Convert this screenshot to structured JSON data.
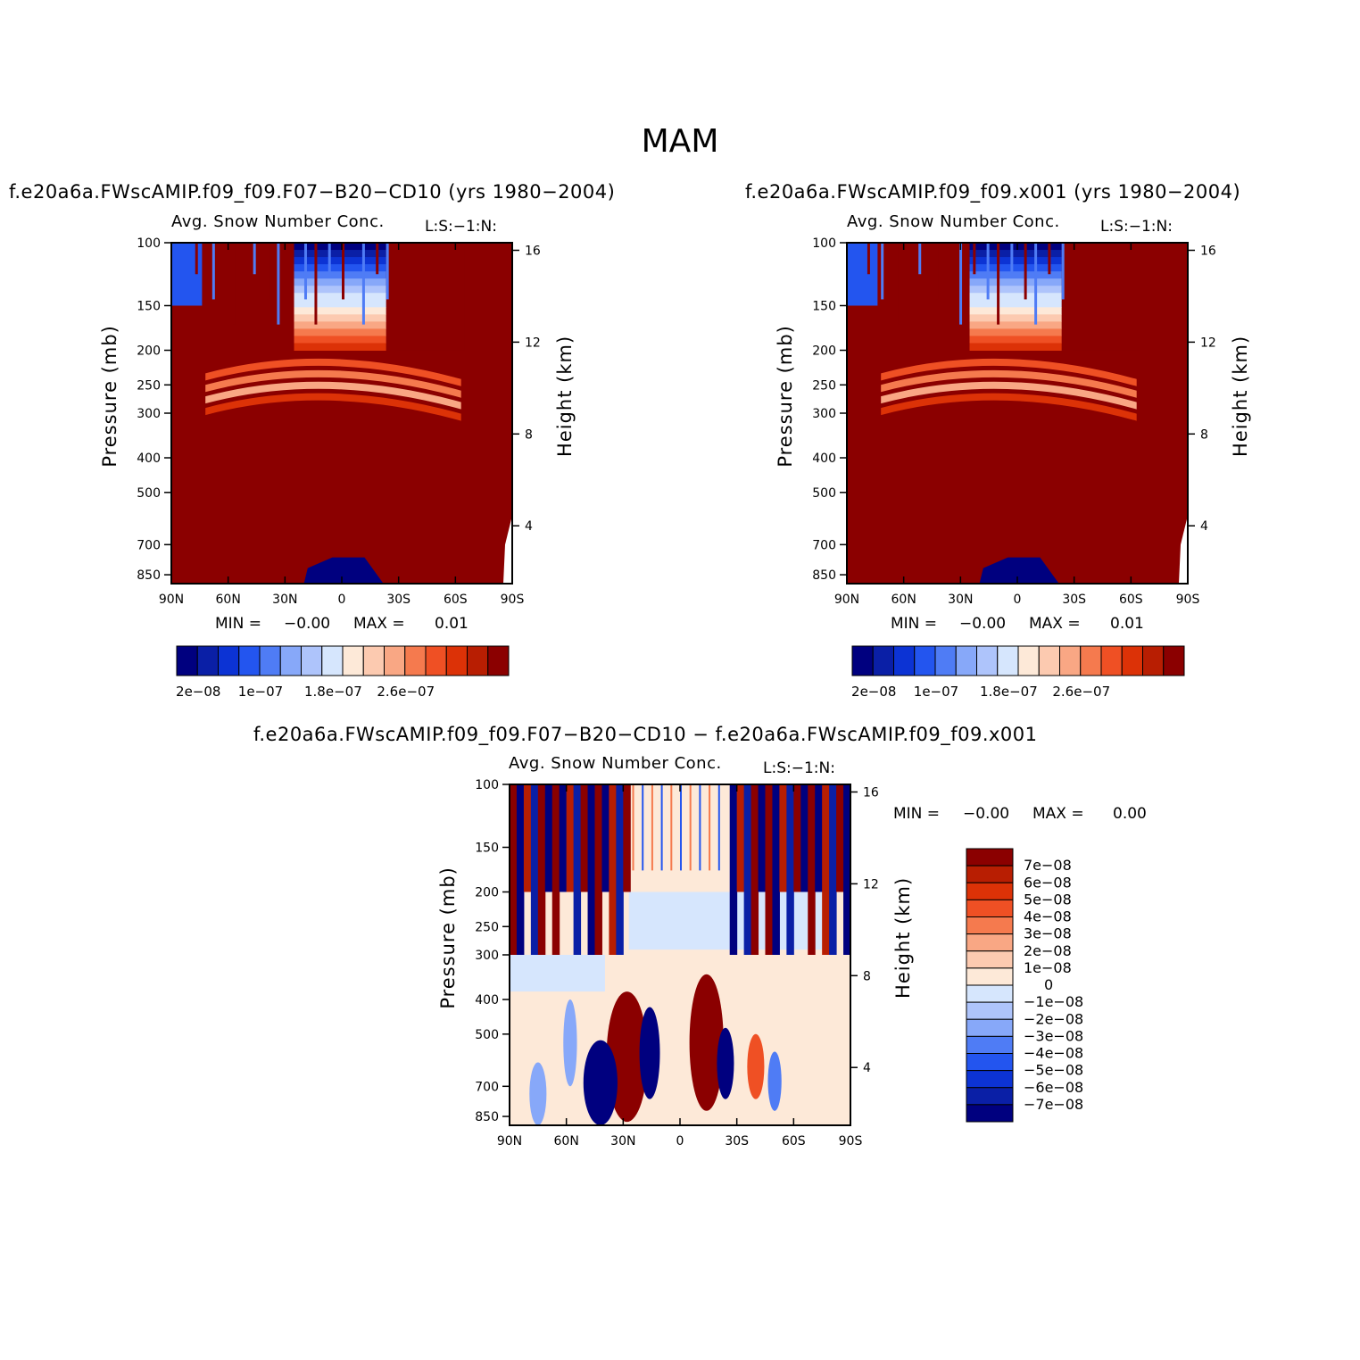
{
  "season": "MAM",
  "panels": [
    {
      "title": "f.e20a6a.FWscAMIP.f09_f09.F07−B20−CD10 (yrs 1980−2004)",
      "variable": "Avg. Snow Number Conc.",
      "level": "L:S:−1:N:",
      "min_label": "MIN =",
      "min_value": "−0.00",
      "max_label": "MAX =",
      "max_value": "0.01"
    },
    {
      "title": "f.e20a6a.FWscAMIP.f09_f09.x001 (yrs 1980−2004)",
      "variable": "Avg. Snow Number Conc.",
      "level": "L:S:−1:N:",
      "min_label": "MIN =",
      "min_value": "−0.00",
      "max_label": "MAX =",
      "max_value": "0.01"
    },
    {
      "title": "f.e20a6a.FWscAMIP.f09_f09.F07−B20−CD10 − f.e20a6a.FWscAMIP.f09_f09.x001",
      "variable": "Avg. Snow Number Conc.",
      "level": "L:S:−1:N:",
      "min_label": "MIN =",
      "min_value": "−0.00",
      "max_label": "MAX =",
      "max_value": "0.00"
    }
  ],
  "chart_data": [
    {
      "type": "heatmap",
      "title": "f.e20a6a.FWscAMIP.f09_f09.F07−B20−CD10 (yrs 1980−2004)",
      "subtitle": "Avg. Snow Number Conc.",
      "xlabel": "",
      "ylabel": "Pressure (mb)",
      "y2label": "Height (km)",
      "x_ticks": [
        "90N",
        "60N",
        "30N",
        "0",
        "30S",
        "60S",
        "90S"
      ],
      "x_tick_values": [
        90,
        60,
        30,
        0,
        -30,
        -60,
        -90
      ],
      "y_ticks": [
        "100",
        "150",
        "200",
        "250",
        "300",
        "400",
        "500",
        "700",
        "850"
      ],
      "y_tick_values": [
        100,
        150,
        200,
        250,
        300,
        400,
        500,
        700,
        850
      ],
      "ylim": [
        100,
        900
      ],
      "y2_ticks": [
        "16",
        "12",
        "8",
        "4"
      ],
      "y2_tick_values": [
        16,
        12,
        8,
        4
      ],
      "colorbar_labels": [
        "2e−08",
        "1e−07",
        "1.8e−07",
        "2.6e−07"
      ],
      "colors": [
        "#00007f",
        "#0a1fa6",
        "#0c33d4",
        "#2355ef",
        "#4f7cf5",
        "#87a8f9",
        "#aec4fb",
        "#d6e6fd",
        "#fde9d8",
        "#fccab0",
        "#f9a784",
        "#f57a4e",
        "#ef5024",
        "#dc3207",
        "#b81e02",
        "#8b0000"
      ]
    },
    {
      "type": "heatmap",
      "title": "f.e20a6a.FWscAMIP.f09_f09.x001 (yrs 1980−2004)",
      "subtitle": "Avg. Snow Number Conc.",
      "xlabel": "",
      "ylabel": "Pressure (mb)",
      "y2label": "Height (km)",
      "x_ticks": [
        "90N",
        "60N",
        "30N",
        "0",
        "30S",
        "60S",
        "90S"
      ],
      "x_tick_values": [
        90,
        60,
        30,
        0,
        -30,
        -60,
        -90
      ],
      "y_ticks": [
        "100",
        "150",
        "200",
        "250",
        "300",
        "400",
        "500",
        "700",
        "850"
      ],
      "y_tick_values": [
        100,
        150,
        200,
        250,
        300,
        400,
        500,
        700,
        850
      ],
      "ylim": [
        100,
        900
      ],
      "y2_ticks": [
        "16",
        "12",
        "8",
        "4"
      ],
      "y2_tick_values": [
        16,
        12,
        8,
        4
      ],
      "colorbar_labels": [
        "2e−08",
        "1e−07",
        "1.8e−07",
        "2.6e−07"
      ],
      "colors": [
        "#00007f",
        "#0a1fa6",
        "#0c33d4",
        "#2355ef",
        "#4f7cf5",
        "#87a8f9",
        "#aec4fb",
        "#d6e6fd",
        "#fde9d8",
        "#fccab0",
        "#f9a784",
        "#f57a4e",
        "#ef5024",
        "#dc3207",
        "#b81e02",
        "#8b0000"
      ]
    },
    {
      "type": "heatmap",
      "title": "f.e20a6a.FWscAMIP.f09_f09.F07−B20−CD10 − f.e20a6a.FWscAMIP.f09_f09.x001",
      "subtitle": "Avg. Snow Number Conc.",
      "xlabel": "",
      "ylabel": "Pressure (mb)",
      "y2label": "Height (km)",
      "x_ticks": [
        "90N",
        "60N",
        "30N",
        "0",
        "30S",
        "60S",
        "90S"
      ],
      "x_tick_values": [
        90,
        60,
        30,
        0,
        -30,
        -60,
        -90
      ],
      "y_ticks": [
        "100",
        "150",
        "200",
        "250",
        "300",
        "400",
        "500",
        "700",
        "850"
      ],
      "y_tick_values": [
        100,
        150,
        200,
        250,
        300,
        400,
        500,
        700,
        850
      ],
      "ylim": [
        100,
        900
      ],
      "y2_ticks": [
        "16",
        "12",
        "8",
        "4"
      ],
      "y2_tick_values": [
        16,
        12,
        8,
        4
      ],
      "colorbar_labels": [
        "7e−08",
        "6e−08",
        "5e−08",
        "4e−08",
        "3e−08",
        "2e−08",
        "1e−08",
        "0",
        "−1e−08",
        "−2e−08",
        "−3e−08",
        "−4e−08",
        "−5e−08",
        "−6e−08",
        "−7e−08"
      ],
      "colors": [
        "#8b0000",
        "#b81e02",
        "#dc3207",
        "#ef5024",
        "#f57a4e",
        "#f9a784",
        "#fccab0",
        "#fde9d8",
        "#d6e6fd",
        "#aec4fb",
        "#87a8f9",
        "#4f7cf5",
        "#2355ef",
        "#0c33d4",
        "#0a1fa6",
        "#00007f"
      ]
    }
  ]
}
